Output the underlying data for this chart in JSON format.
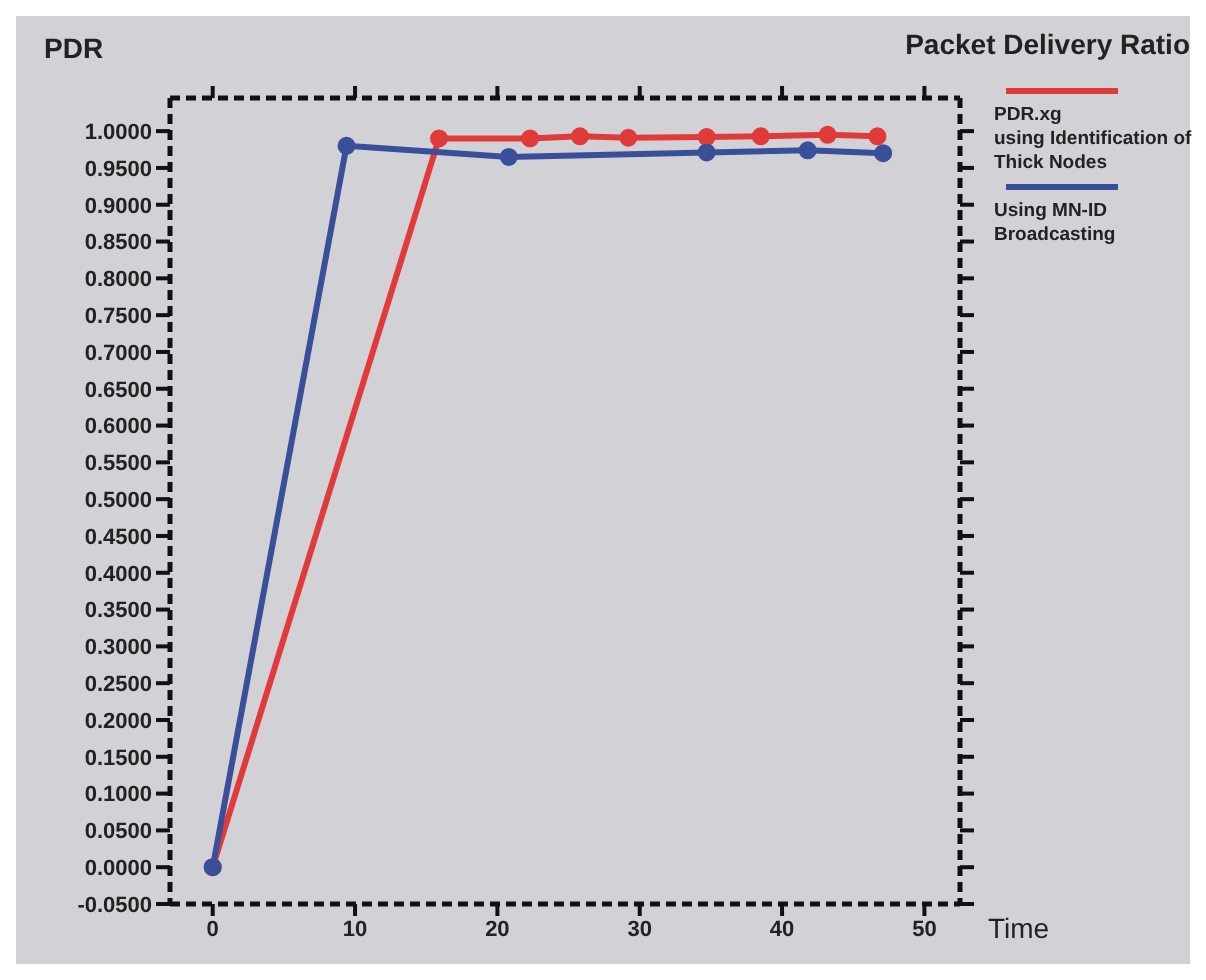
{
  "chart_data": {
    "type": "line",
    "title": "Packet Delivery Ratio",
    "ylabel": "PDR",
    "xlabel": "Time",
    "series": [
      {
        "name": "PDR.xg\nusing Identification of\nThick Nodes",
        "color": "#e03a3a",
        "x": [
          0,
          15.9,
          22.3,
          25.8,
          29.2,
          34.7,
          38.5,
          43.2,
          46.7
        ],
        "values": [
          0,
          0.99,
          0.99,
          0.993,
          0.991,
          0.992,
          0.993,
          0.995,
          0.993
        ]
      },
      {
        "name": "Using MN-ID\nBroadcasting",
        "color": "#3a4f9a",
        "x": [
          0,
          9.4,
          20.8,
          34.7,
          41.8,
          47.1
        ],
        "values": [
          0,
          0.98,
          0.965,
          0.971,
          0.974,
          0.97
        ]
      }
    ],
    "xlim": [
      -3,
      52.5
    ],
    "ylim": [
      -0.05,
      1.045
    ],
    "xticks": [
      0,
      10,
      20,
      30,
      40,
      50
    ],
    "yticks": [
      {
        "value": -0.05,
        "label": "-0.0500"
      },
      {
        "value": 0,
        "label": "0.0000"
      },
      {
        "value": 0.05,
        "label": "0.0500"
      },
      {
        "value": 0.1,
        "label": "0.1000"
      },
      {
        "value": 0.15,
        "label": "0.1500"
      },
      {
        "value": 0.2,
        "label": "0.2000"
      },
      {
        "value": 0.25,
        "label": "0.2500"
      },
      {
        "value": 0.3,
        "label": "0.3000"
      },
      {
        "value": 0.35,
        "label": "0.3500"
      },
      {
        "value": 0.4,
        "label": "0.4000"
      },
      {
        "value": 0.45,
        "label": "0.4500"
      },
      {
        "value": 0.5,
        "label": "0.5000"
      },
      {
        "value": 0.55,
        "label": "0.5500"
      },
      {
        "value": 0.6,
        "label": "0.6000"
      },
      {
        "value": 0.65,
        "label": "0.6500"
      },
      {
        "value": 0.7,
        "label": "0.7000"
      },
      {
        "value": 0.75,
        "label": "0.7500"
      },
      {
        "value": 0.8,
        "label": "0.8000"
      },
      {
        "value": 0.85,
        "label": "0.8500"
      },
      {
        "value": 0.9,
        "label": "0.9000"
      },
      {
        "value": 0.95,
        "label": "0.9500"
      },
      {
        "value": 1,
        "label": "1.0000"
      }
    ],
    "grid": false,
    "legend": "top right",
    "marker": "circle",
    "line_style": "solid"
  }
}
